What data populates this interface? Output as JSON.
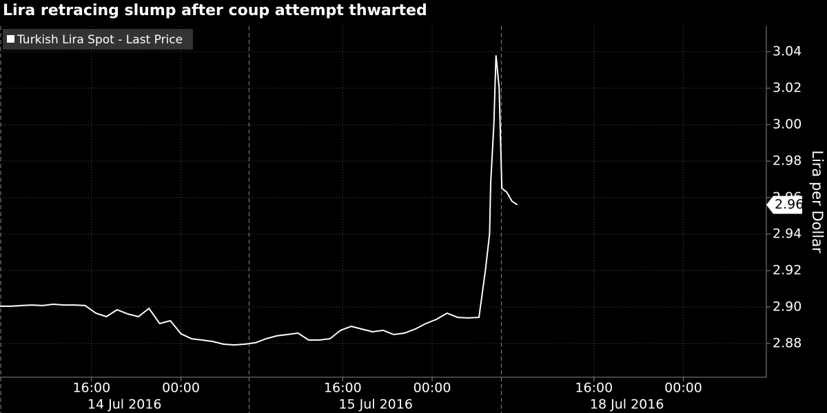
{
  "chart_data": {
    "type": "line",
    "title": "Lira retracing slump after coup attempt thwarted",
    "y_label": "Lira per Dollar",
    "x": [
      0,
      1,
      2,
      3,
      4,
      5,
      6,
      7,
      8,
      9,
      10,
      11,
      12,
      13,
      14,
      15,
      16,
      17,
      18,
      19,
      20,
      21,
      22,
      23,
      24,
      25,
      26,
      27,
      28,
      29,
      30,
      31,
      32,
      33,
      34,
      35,
      36,
      37,
      38,
      39,
      40,
      41,
      42,
      43,
      44,
      45,
      45.6,
      46.0,
      46.1,
      46.4,
      46.6,
      46.9,
      47.15,
      47.6,
      48.1,
      48.6
    ],
    "series": [
      {
        "name": "Turkish Lira Spot - Last Price",
        "color": "#ffffff",
        "last_label": "2.96",
        "values": [
          2.9004,
          2.9004,
          2.9008,
          2.9011,
          2.9008,
          2.9015,
          2.9011,
          2.9011,
          2.9008,
          2.8966,
          2.8947,
          2.8985,
          2.8962,
          2.8947,
          2.8992,
          2.8909,
          2.8925,
          2.8853,
          2.8826,
          2.8819,
          2.8811,
          2.8796,
          2.8792,
          2.8796,
          2.8804,
          2.8826,
          2.8842,
          2.8849,
          2.8857,
          2.8819,
          2.8819,
          2.8826,
          2.8872,
          2.8894,
          2.8879,
          2.8864,
          2.8872,
          2.8849,
          2.8857,
          2.8879,
          2.8909,
          2.8932,
          2.8966,
          2.8943,
          2.894,
          2.8943,
          2.92,
          2.94,
          2.968,
          3.0,
          3.038,
          3.02,
          2.965,
          2.963,
          2.958,
          2.956
        ]
      }
    ],
    "xlim": [
      0,
      72
    ],
    "xticks": [
      {
        "value": 8.6,
        "label": "16:00"
      },
      {
        "value": 17.0,
        "label": "00:00"
      },
      {
        "value": 32.2,
        "label": "16:00"
      },
      {
        "value": 40.6,
        "label": "00:00"
      },
      {
        "value": 55.8,
        "label": "16:00"
      },
      {
        "value": 64.2,
        "label": "00:00"
      }
    ],
    "date_labels": [
      {
        "value": 11.7,
        "label": "14 Jul 2016"
      },
      {
        "value": 35.3,
        "label": "15 Jul 2016"
      },
      {
        "value": 58.9,
        "label": "18 Jul 2016"
      }
    ],
    "day_breaks": [
      23.4,
      47.1
    ],
    "ylim": [
      2.8615,
      3.054
    ],
    "yticks": [
      2.88,
      {
        "value": 2.9,
        "label": "2.90"
      },
      2.92,
      2.94,
      2.96,
      2.98,
      {
        "value": 3,
        "label": "3.00"
      },
      3.02,
      3.04
    ],
    "grid": true,
    "legend": "top-left"
  }
}
